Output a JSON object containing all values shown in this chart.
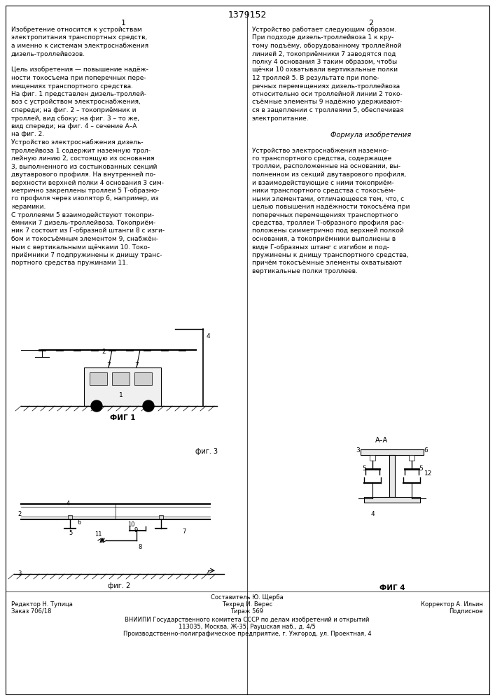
{
  "patent_number": "1379152",
  "col1_number": "1",
  "col2_number": "2",
  "col1_text": [
    "Изобретение относится к устройствам",
    "электропитания транспортных средств,",
    "а именно к системам электроснабжения",
    "дизель-троллейвозов.",
    "",
    "Цель изобретения — повышение надёж-",
    "ности токосъема при поперечных пере-",
    "мещениях транспортного средства.",
    "На фиг. 1 представлен дизель-троллей-",
    "воз с устройством электроснабжения,",
    "спереди; на фиг. 2 – токоприёмник и",
    "троллей, вид сбоку; на фиг. 3 – то же,",
    "вид спереди; на фиг. 4 – сечение А–А",
    "на фиг. 2.",
    "Устройство электроснабжения дизель-",
    "троллейвоза 1 содержит наземную трол-",
    "лейную линию 2, состоящую из основания",
    "3, выполненного из состыкованных секций",
    "двутаврового профиля. На внутренней по-",
    "верхности верхней полки 4 основания 3 сим-",
    "метрично закреплены троллеи 5 Т-образно-",
    "го профиля через изолятор 6, например, из",
    "керамики.",
    "С троллеями 5 взаимодействуют токопри-",
    "ёмники 7 дизель-троллейвоза. Токоприём-",
    "ник 7 состоит из Г-образной штанги 8 с изги-",
    "бом и токосъёмным элементом 9, снабжён-",
    "ным с вертикальными щёчками 10. Токо-",
    "приёмники 7 подпружинены к днищу транс-",
    "портного средства пружинами 11."
  ],
  "col2_text": [
    "Устройство работает следующим образом.",
    "При подходе дизель-троллейвоза 1 к кру-",
    "тому подъёму, оборудованному троллейной",
    "линией 2, токоприёмники 7 заводятся под",
    "полку 4 основания 3 таким образом, чтобы",
    "щёчки 10 охватывали вертикальные полки",
    "12 троллей 5. В результате при попе-",
    "речных перемещениях дизель-троллейвоза",
    "относительно оси троллейной линии 2 токо-",
    "съёмные элементы 9 надёжно удерживают-",
    "ся в зацеплении с троллеями 5, обеспечивая",
    "электропитание.",
    "",
    "Формула изобретения",
    "",
    "Устройство электроснабжения наземно-",
    "го транспортного средства, содержащее",
    "троллеи, расположенные на основании, вы-",
    "полненном из секций двутаврового профиля,",
    "и взаимодействующие с ними токоприём-",
    "ники транспортного средства с токосъём-",
    "ными элементами, отличающееся тем, что, с",
    "целью повышения надёжности токосъёма при",
    "поперечных перемещениях транспортного",
    "средства, троллеи Т-образного профиля рас-",
    "положены симметрично под верхней полкой",
    "основания, а токоприёмники выполнены в",
    "виде Г-образных штанг с изгибом и под-",
    "пружинены к днищу транспортного средства,",
    "причём токосъёмные элементы охватывают",
    "вертикальные полки троллеев."
  ],
  "formula_title": "Формула изобретения",
  "footer": {
    "line1_left": "Редактор Н. Тупица",
    "line1_center": "Составитель Ю. Щерба",
    "line1_right": "Корректор А. Ильин",
    "line2_left": "Заказ 706/18",
    "line2_center": "Техред И. Верес",
    "line2_right": "",
    "line3_left": "",
    "line3_center": "Тираж 569",
    "line3_right": "Подписное",
    "line4": "ВНИИПИ Государственного комитета СССР по делам изобретений и открытий",
    "line5": "113035, Москва, Ж-35, Раушская наб., д. 4/5",
    "line6": "Производственно-полиграфическое предприятие, г. Ужгород, ул. Проектная, 4"
  },
  "fig1_label": "ФИГ 1",
  "fig2_label": "фиг. 2",
  "fig3_label": "фиг. 3",
  "fig4_label": "ФИГ 4",
  "background_color": "#ffffff",
  "text_color": "#000000",
  "border_color": "#000000"
}
